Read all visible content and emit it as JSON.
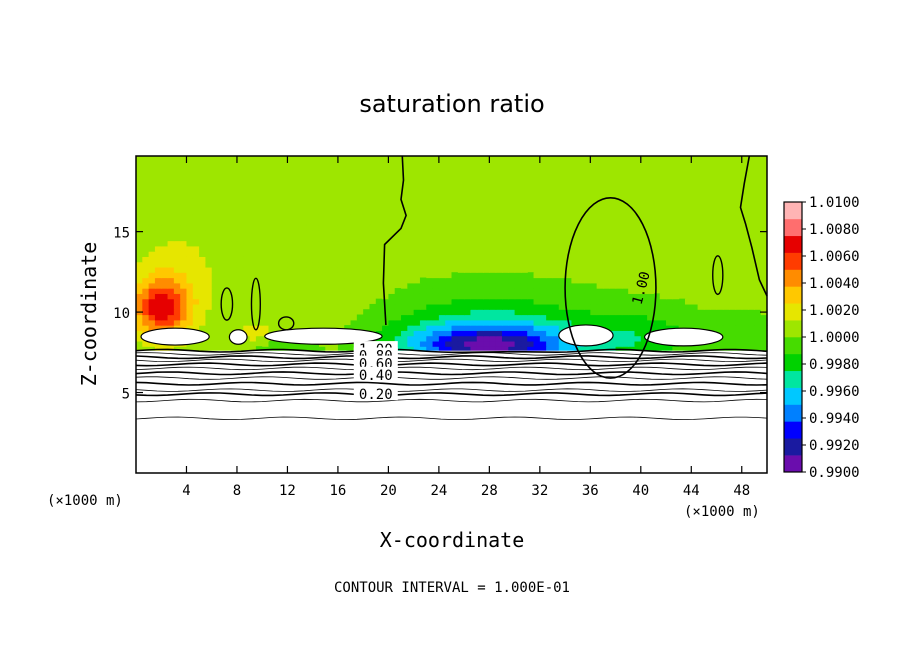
{
  "chart_data": {
    "type": "heatmap",
    "title": "saturation ratio",
    "xlabel": "X-coordinate",
    "ylabel": "Z-coordinate",
    "x_unit_label": "(×1000 m)",
    "y_unit_label": "(×1000 m)",
    "xlim": [
      0,
      50
    ],
    "ylim": [
      0,
      19.7
    ],
    "x_ticks": [
      4,
      8,
      12,
      16,
      20,
      24,
      28,
      32,
      36,
      40,
      44,
      48
    ],
    "y_ticks": [
      5,
      10,
      15
    ],
    "colorbar": {
      "levels": [
        "1.0100",
        "1.0080",
        "1.0060",
        "1.0040",
        "1.0020",
        "1.0000",
        "0.9980",
        "0.9960",
        "0.9940",
        "0.9920",
        "0.9900"
      ],
      "min": 0.99,
      "max": 1.01,
      "colors": [
        "#6a0dad",
        "#1a1aa0",
        "#0000ff",
        "#0080ff",
        "#00c8ff",
        "#00e6a0",
        "#00d200",
        "#46dc00",
        "#9ee600",
        "#e6e600",
        "#ffc800",
        "#ff8c00",
        "#ff3c00",
        "#e60000",
        "#ff6e6e",
        "#ffb4b4"
      ]
    },
    "contour_labels": [
      "1.00",
      "0.80",
      "0.60",
      "0.40",
      "0.20"
    ],
    "contour_interval_text": "CONTOUR INTERVAL = 1.000E-01",
    "background_value": 1.0003,
    "features": [
      {
        "kind": "warm_core",
        "x": 2.0,
        "z": 10.5,
        "value": 1.0065
      },
      {
        "kind": "cool_band",
        "x": 28.0,
        "z": 8.0,
        "value": 0.9925
      },
      {
        "kind": "low_layer",
        "z_top": 7.6,
        "value": 0.5
      }
    ]
  }
}
